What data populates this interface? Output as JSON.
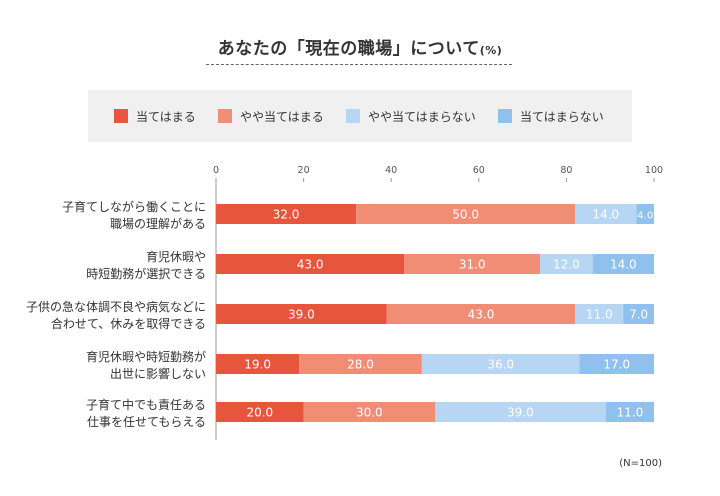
{
  "title": {
    "main": "あなたの「現在の職場」について",
    "unit": "(%)"
  },
  "note": "(N=100)",
  "legend": [
    {
      "label": "当てはまる",
      "color": "#e8553d"
    },
    {
      "label": "やや当てはまる",
      "color": "#f28d75"
    },
    {
      "label": "やや当てはまらない",
      "color": "#b6d6f4"
    },
    {
      "label": "当てはまらない",
      "color": "#90c1ee"
    }
  ],
  "chart_data": {
    "type": "bar",
    "orientation": "horizontal",
    "stacked": true,
    "title": "あなたの「現在の職場」について(%)",
    "xlim": [
      0,
      100
    ],
    "xticks": [
      0,
      20,
      40,
      60,
      80,
      100
    ],
    "grid": false,
    "legend_position": "top",
    "categories": [
      [
        "子育てしながら働くことに",
        "職場の理解がある"
      ],
      [
        "育児休暇や",
        "時短勤務が選択できる"
      ],
      [
        "子供の急な体調不良や病気などに",
        "合わせて、休みを取得できる"
      ],
      [
        "育児休暇や時短勤務が",
        "出世に影響しない"
      ],
      [
        "子育て中でも責任ある",
        "仕事を任せてもらえる"
      ]
    ],
    "series": [
      {
        "name": "当てはまる",
        "color": "#e8553d",
        "values": [
          32.0,
          43.0,
          39.0,
          19.0,
          20.0
        ],
        "labels": [
          "32.0",
          "43.0",
          "39.0",
          "19.0",
          "20.0"
        ]
      },
      {
        "name": "やや当てはまる",
        "color": "#f28d75",
        "values": [
          50.0,
          31.0,
          43.0,
          28.0,
          30.0
        ],
        "labels": [
          "50.0",
          "31.0",
          "43.0",
          "28.0",
          "30.0"
        ]
      },
      {
        "name": "やや当てはまらない",
        "color": "#b6d6f4",
        "values": [
          14.0,
          12.0,
          11.0,
          36.0,
          39.0
        ],
        "labels": [
          "14.0",
          "12.0",
          "11.0",
          "36.0",
          "39.0"
        ]
      },
      {
        "name": "当てはまらない",
        "color": "#90c1ee",
        "values": [
          4.0,
          14.0,
          7.0,
          17.0,
          11.0
        ],
        "labels": [
          "4.0",
          "14.0",
          "7.0",
          "17.0",
          "11.0"
        ]
      }
    ]
  }
}
